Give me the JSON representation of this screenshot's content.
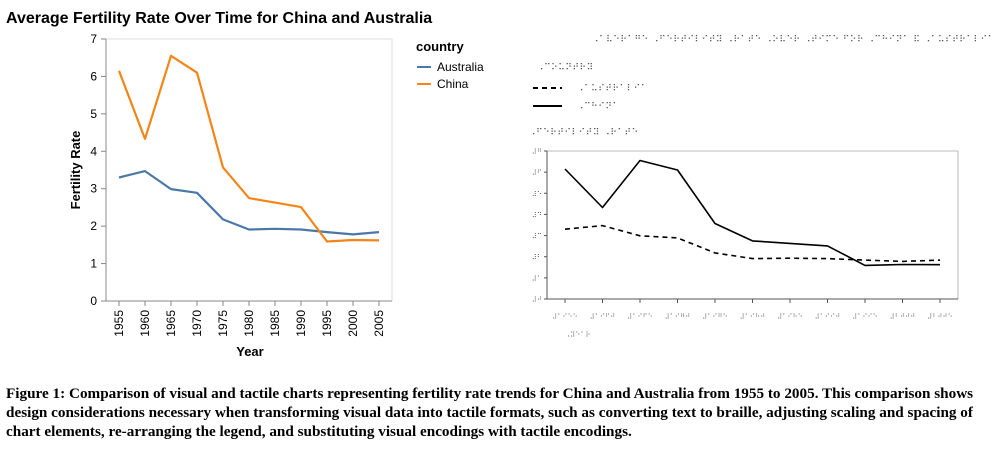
{
  "chart_data": [
    {
      "type": "line",
      "title": "Average Fertility Rate Over Time for China and Australia",
      "xlabel": "Year",
      "ylabel": "Fertility Rate",
      "x": [
        1955,
        1960,
        1965,
        1970,
        1975,
        1980,
        1985,
        1990,
        1995,
        2000,
        2005
      ],
      "ylim": [
        0,
        7
      ],
      "yticks": [
        0,
        1,
        2,
        3,
        4,
        5,
        6,
        7
      ],
      "legend_title": "country",
      "legend_position": "top-right",
      "grid": false,
      "series": [
        {
          "name": "Australia",
          "color": "#4c78a8",
          "values": [
            3.3,
            3.47,
            2.99,
            2.89,
            2.18,
            1.91,
            1.93,
            1.91,
            1.84,
            1.78,
            1.84
          ]
        },
        {
          "name": "China",
          "color": "#f58518",
          "values": [
            6.15,
            4.33,
            6.55,
            6.1,
            3.57,
            2.75,
            2.63,
            2.51,
            1.59,
            1.63,
            1.62
          ]
        }
      ]
    },
    {
      "type": "line",
      "title": "⠠⠁⠧⠑⠗⠁⠛⠑ ⠠⠋⠑⠗⠞⠊⠇⠊⠞⠽ ⠠⠗⠁⠞⠑ ⠠⠕⠧⠑⠗ ⠠⠞⠊⠍⠑ ⠋⠕⠗ ⠠⠉⠓⠊⠝⠁ ⠯ ⠠⠁⠥⠎⠞⠗⠁⠇⠊⠁",
      "xlabel": "⠠⠽⠑⠁⠗",
      "ylabel": "⠠⠋⠑⠗⠞⠊⠇⠊⠞⠽ ⠠⠗⠁⠞⠑",
      "x": [
        1955,
        1960,
        1965,
        1970,
        1975,
        1980,
        1985,
        1990,
        1995,
        2000,
        2005
      ],
      "x_tick_labels": [
        "⠼⠁⠊⠑⠑",
        "⠼⠁⠊⠋⠚",
        "⠼⠁⠊⠋⠑",
        "⠼⠁⠊⠛⠚",
        "⠼⠁⠊⠛⠑",
        "⠼⠁⠊⠓⠚",
        "⠼⠁⠊⠓⠑",
        "⠼⠁⠊⠊⠚",
        "⠼⠁⠊⠊⠑",
        "⠼⠃⠚⠚⠚",
        "⠼⠃⠚⠚⠑"
      ],
      "ylim": [
        0,
        7
      ],
      "y_tick_labels": [
        "⠼⠚",
        "⠼⠁",
        "⠼⠃",
        "⠼⠉",
        "⠼⠙",
        "⠼⠑",
        "⠼⠋",
        "⠼⠛"
      ],
      "legend_title": "⠠⠉⠕⠥⠝⠞⠗⠽",
      "legend_position": "top-left",
      "series": [
        {
          "name": "⠠⠁⠥⠎⠞⠗⠁⠇⠊⠁",
          "line_style": "dashed",
          "values": [
            3.3,
            3.47,
            2.99,
            2.89,
            2.18,
            1.91,
            1.93,
            1.91,
            1.84,
            1.78,
            1.84
          ]
        },
        {
          "name": "⠠⠉⠓⠊⠝⠁",
          "line_style": "solid",
          "values": [
            6.15,
            4.33,
            6.55,
            6.1,
            3.57,
            2.75,
            2.63,
            2.51,
            1.59,
            1.63,
            1.62
          ]
        }
      ]
    }
  ],
  "caption": "Figure 1: Comparison of visual and tactile charts representing fertility rate trends for China and Australia from 1955 to 2005. This comparison shows design considerations necessary when transforming visual data into tactile formats, such as converting text to braille, adjusting scaling and spacing of chart elements, re-arranging the legend, and substituting visual encodings with tactile encodings."
}
